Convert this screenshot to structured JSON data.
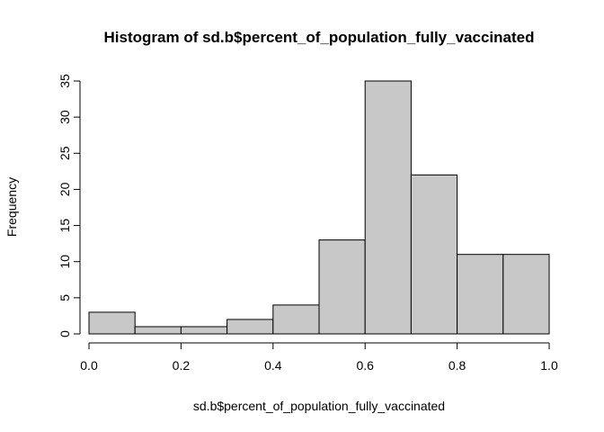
{
  "chart_data": {
    "type": "bar",
    "title": "Histogram of sd.b$percent_of_population_fully_vaccinated",
    "xlabel": "sd.b$percent_of_population_fully_vaccinated",
    "ylabel": "Frequency",
    "bins": [
      {
        "start": 0.0,
        "end": 0.1,
        "count": 3
      },
      {
        "start": 0.1,
        "end": 0.2,
        "count": 1
      },
      {
        "start": 0.2,
        "end": 0.3,
        "count": 1
      },
      {
        "start": 0.3,
        "end": 0.4,
        "count": 2
      },
      {
        "start": 0.4,
        "end": 0.5,
        "count": 4
      },
      {
        "start": 0.5,
        "end": 0.6,
        "count": 13
      },
      {
        "start": 0.6,
        "end": 0.7,
        "count": 35
      },
      {
        "start": 0.7,
        "end": 0.8,
        "count": 22
      },
      {
        "start": 0.8,
        "end": 0.9,
        "count": 11
      },
      {
        "start": 0.9,
        "end": 1.0,
        "count": 11
      }
    ],
    "xlim": [
      0,
      1
    ],
    "ylim": [
      0,
      35
    ],
    "x_ticks": [
      "0.0",
      "0.2",
      "0.4",
      "0.6",
      "0.8",
      "1.0"
    ],
    "y_ticks": [
      "0",
      "5",
      "10",
      "15",
      "20",
      "25",
      "30",
      "35"
    ],
    "grid": false,
    "bar_color": "#c8c8c8",
    "edge_color": "#000000"
  }
}
